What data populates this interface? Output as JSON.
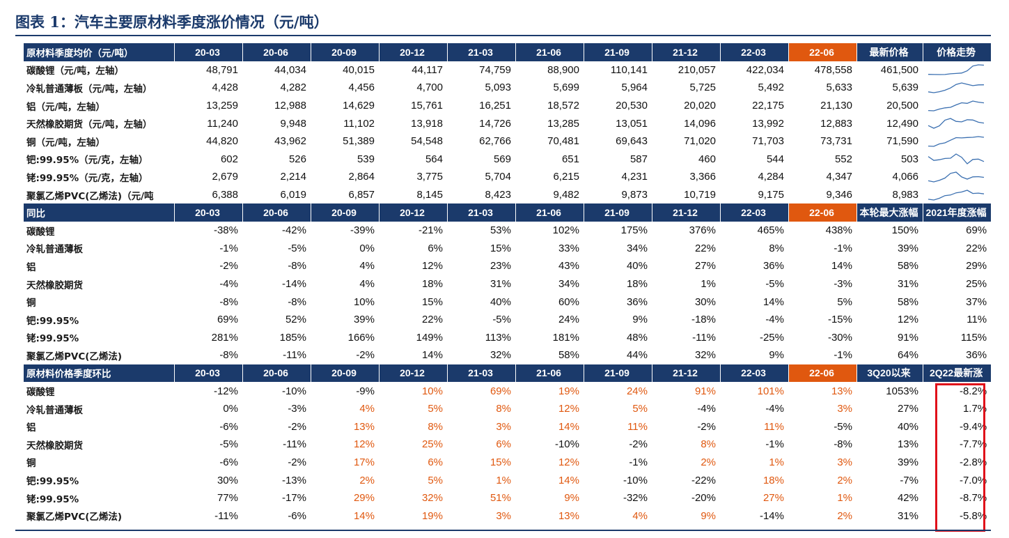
{
  "title": "图表 1：汽车主要原材料季度涨价情况（元/吨）",
  "colors": {
    "header": "#1b3a6b",
    "highlight": "#e0580f",
    "up": "#e0580f",
    "box": "#e0101a"
  },
  "periods": [
    "20-03",
    "20-06",
    "20-09",
    "20-12",
    "21-03",
    "21-06",
    "21-09",
    "21-12",
    "22-03",
    "22-06"
  ],
  "sections": [
    {
      "header": "原材料季度均价（元/吨）",
      "extra_headers": [
        "最新价格",
        "价格走势"
      ],
      "rows": [
        {
          "label": "碳酸锂（元/吨，左轴）",
          "values": [
            "48,791",
            "44,034",
            "40,015",
            "44,117",
            "74,759",
            "88,900",
            "110,141",
            "210,057",
            "422,034",
            "478,558"
          ],
          "extra": [
            "461,500"
          ],
          "trend": [
            48791,
            44034,
            40015,
            44117,
            74759,
            88900,
            110141,
            210057,
            422034,
            478558,
            461500
          ]
        },
        {
          "label": "冷轧普通薄板（元/吨，左轴）",
          "values": [
            "4,428",
            "4,282",
            "4,456",
            "4,700",
            "5,093",
            "5,699",
            "5,964",
            "5,725",
            "5,492",
            "5,633"
          ],
          "extra": [
            "5,639"
          ],
          "trend": [
            4428,
            4282,
            4456,
            4700,
            5093,
            5699,
            5964,
            5725,
            5492,
            5633,
            5639
          ]
        },
        {
          "label": "铝（元/吨，左轴）",
          "values": [
            "13,259",
            "12,988",
            "14,629",
            "15,761",
            "16,251",
            "18,572",
            "20,530",
            "20,020",
            "22,175",
            "21,130"
          ],
          "extra": [
            "20,500"
          ],
          "trend": [
            13259,
            12988,
            14629,
            15761,
            16251,
            18572,
            20530,
            20020,
            22175,
            21130,
            20500
          ]
        },
        {
          "label": "天然橡胶期货（元/吨，左轴）",
          "values": [
            "11,240",
            "9,948",
            "11,102",
            "13,918",
            "14,726",
            "13,285",
            "13,051",
            "14,096",
            "13,992",
            "12,883"
          ],
          "extra": [
            "12,490"
          ],
          "trend": [
            11240,
            9948,
            11102,
            13918,
            14726,
            13285,
            13051,
            14096,
            13992,
            12883,
            12490
          ]
        },
        {
          "label": "铜（元/吨，左轴）",
          "values": [
            "44,820",
            "43,962",
            "51,389",
            "54,548",
            "62,766",
            "70,481",
            "69,643",
            "71,020",
            "71,703",
            "73,731"
          ],
          "extra": [
            "71,590"
          ],
          "trend": [
            44820,
            43962,
            51389,
            54548,
            62766,
            70481,
            69643,
            71020,
            71703,
            73731,
            71590
          ]
        },
        {
          "label": "钯:99.95%（元/克，左轴）",
          "values": [
            "602",
            "526",
            "539",
            "564",
            "569",
            "651",
            "587",
            "460",
            "544",
            "552"
          ],
          "extra": [
            "503"
          ],
          "trend": [
            602,
            526,
            539,
            564,
            569,
            651,
            587,
            460,
            544,
            552,
            503
          ]
        },
        {
          "label": "铑:99.95%（元/克，左轴）",
          "values": [
            "2,679",
            "2,214",
            "2,864",
            "3,775",
            "5,704",
            "6,215",
            "4,231",
            "3,366",
            "4,284",
            "4,347"
          ],
          "extra": [
            "4,066"
          ],
          "trend": [
            2679,
            2214,
            2864,
            3775,
            5704,
            6215,
            4231,
            3366,
            4284,
            4347,
            4066
          ]
        },
        {
          "label": "聚氯乙烯PVC(乙烯法)（元/吨",
          "values": [
            "6,388",
            "6,019",
            "6,857",
            "8,145",
            "8,423",
            "9,482",
            "9,873",
            "10,719",
            "9,175",
            "9,346"
          ],
          "extra": [
            "8,983"
          ],
          "trend": [
            6388,
            6019,
            6857,
            8145,
            8423,
            9482,
            9873,
            10719,
            9175,
            9346,
            8983
          ]
        }
      ]
    },
    {
      "header": "同比",
      "extra_headers": [
        "本轮最大涨幅",
        "2021年度涨幅"
      ],
      "rows": [
        {
          "label": "碳酸锂",
          "values": [
            "-38%",
            "-42%",
            "-39%",
            "-21%",
            "53%",
            "102%",
            "175%",
            "376%",
            "465%",
            "438%"
          ],
          "extra": [
            "150%",
            "69%"
          ]
        },
        {
          "label": "冷轧普通薄板",
          "values": [
            "-1%",
            "-5%",
            "0%",
            "6%",
            "15%",
            "33%",
            "34%",
            "22%",
            "8%",
            "-1%"
          ],
          "extra": [
            "39%",
            "22%"
          ]
        },
        {
          "label": "铝",
          "values": [
            "-2%",
            "-8%",
            "4%",
            "12%",
            "23%",
            "43%",
            "40%",
            "27%",
            "36%",
            "14%"
          ],
          "extra": [
            "58%",
            "29%"
          ]
        },
        {
          "label": "天然橡胶期货",
          "values": [
            "-4%",
            "-14%",
            "4%",
            "18%",
            "31%",
            "34%",
            "18%",
            "1%",
            "-5%",
            "-3%"
          ],
          "extra": [
            "31%",
            "25%"
          ]
        },
        {
          "label": "铜",
          "values": [
            "-8%",
            "-8%",
            "10%",
            "15%",
            "40%",
            "60%",
            "36%",
            "30%",
            "14%",
            "5%"
          ],
          "extra": [
            "58%",
            "37%"
          ]
        },
        {
          "label": "钯:99.95%",
          "values": [
            "69%",
            "52%",
            "39%",
            "22%",
            "-5%",
            "24%",
            "9%",
            "-18%",
            "-4%",
            "-15%"
          ],
          "extra": [
            "12%",
            "11%"
          ]
        },
        {
          "label": "铑:99.95%",
          "values": [
            "281%",
            "185%",
            "166%",
            "149%",
            "113%",
            "181%",
            "48%",
            "-11%",
            "-25%",
            "-30%"
          ],
          "extra": [
            "91%",
            "115%"
          ]
        },
        {
          "label": "聚氯乙烯PVC(乙烯法)",
          "values": [
            "-8%",
            "-11%",
            "-2%",
            "14%",
            "32%",
            "58%",
            "44%",
            "32%",
            "9%",
            "-1%"
          ],
          "extra": [
            "64%",
            "36%"
          ]
        }
      ]
    },
    {
      "header": "原材料价格季度环比",
      "extra_headers": [
        "3Q20以来",
        "2Q22最新涨"
      ],
      "rows": [
        {
          "label": "碳酸锂",
          "values": [
            "-12%",
            "-10%",
            "-9%",
            "10%",
            "69%",
            "19%",
            "24%",
            "91%",
            "101%",
            "13%"
          ],
          "extra": [
            "1053%",
            "-8.2%"
          ]
        },
        {
          "label": "冷轧普通薄板",
          "values": [
            "0%",
            "-3%",
            "4%",
            "5%",
            "8%",
            "12%",
            "5%",
            "-4%",
            "-4%",
            "3%"
          ],
          "extra": [
            "27%",
            "1.7%"
          ]
        },
        {
          "label": "铝",
          "values": [
            "-6%",
            "-2%",
            "13%",
            "8%",
            "3%",
            "14%",
            "11%",
            "-2%",
            "11%",
            "-5%"
          ],
          "extra": [
            "40%",
            "-9.4%"
          ]
        },
        {
          "label": "天然橡胶期货",
          "values": [
            "-5%",
            "-11%",
            "12%",
            "25%",
            "6%",
            "-10%",
            "-2%",
            "8%",
            "-1%",
            "-8%"
          ],
          "extra": [
            "13%",
            "-7.7%"
          ]
        },
        {
          "label": "铜",
          "values": [
            "-6%",
            "-2%",
            "17%",
            "6%",
            "15%",
            "12%",
            "-1%",
            "2%",
            "1%",
            "3%"
          ],
          "extra": [
            "39%",
            "-2.8%"
          ]
        },
        {
          "label": "钯:99.95%",
          "values": [
            "30%",
            "-13%",
            "2%",
            "5%",
            "1%",
            "14%",
            "-10%",
            "-22%",
            "18%",
            "2%"
          ],
          "extra": [
            "-7%",
            "-7.0%"
          ]
        },
        {
          "label": "铑:99.95%",
          "values": [
            "77%",
            "-17%",
            "29%",
            "32%",
            "51%",
            "9%",
            "-32%",
            "-20%",
            "27%",
            "1%"
          ],
          "extra": [
            "42%",
            "-8.7%"
          ]
        },
        {
          "label": "聚氯乙烯PVC(乙烯法)",
          "values": [
            "-11%",
            "-6%",
            "14%",
            "19%",
            "3%",
            "13%",
            "4%",
            "9%",
            "-14%",
            "2%"
          ],
          "extra": [
            "31%",
            "-5.8%"
          ]
        }
      ]
    }
  ]
}
